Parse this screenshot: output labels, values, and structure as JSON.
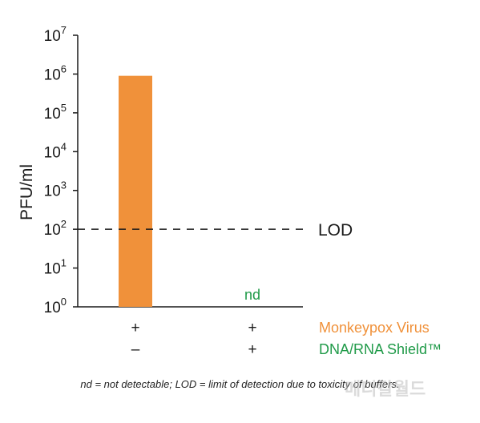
{
  "chart_data": {
    "type": "bar",
    "ylabel": "PFU/ml",
    "yscale": "log",
    "ylim": [
      1,
      10000000
    ],
    "y_ticks": [
      {
        "base": "10",
        "exp": "0",
        "value": 1
      },
      {
        "base": "10",
        "exp": "1",
        "value": 10
      },
      {
        "base": "10",
        "exp": "2",
        "value": 100
      },
      {
        "base": "10",
        "exp": "3",
        "value": 1000
      },
      {
        "base": "10",
        "exp": "4",
        "value": 10000
      },
      {
        "base": "10",
        "exp": "5",
        "value": 100000
      },
      {
        "base": "10",
        "exp": "6",
        "value": 1000000
      },
      {
        "base": "10",
        "exp": "7",
        "value": 10000000
      }
    ],
    "categories": [
      {
        "virus": "+",
        "shield": "–"
      },
      {
        "virus": "+",
        "shield": "+"
      }
    ],
    "values": [
      900000,
      null
    ],
    "bar_labels": [
      "",
      "nd"
    ],
    "row_labels": [
      {
        "text": "Monkeypox Virus",
        "color": "#f0913a"
      },
      {
        "text": "DNA/RNA Shield™",
        "color": "#1f9a48"
      }
    ],
    "reference_line": {
      "label": "LOD",
      "value": 100,
      "style": "dashed"
    },
    "bar_color": "#f0913a",
    "nd_color": "#1f9a48"
  },
  "footnote": "nd = not detectable; LOD = limit of detection due to toxicity of buffers.",
  "watermark": "메디칼월드"
}
